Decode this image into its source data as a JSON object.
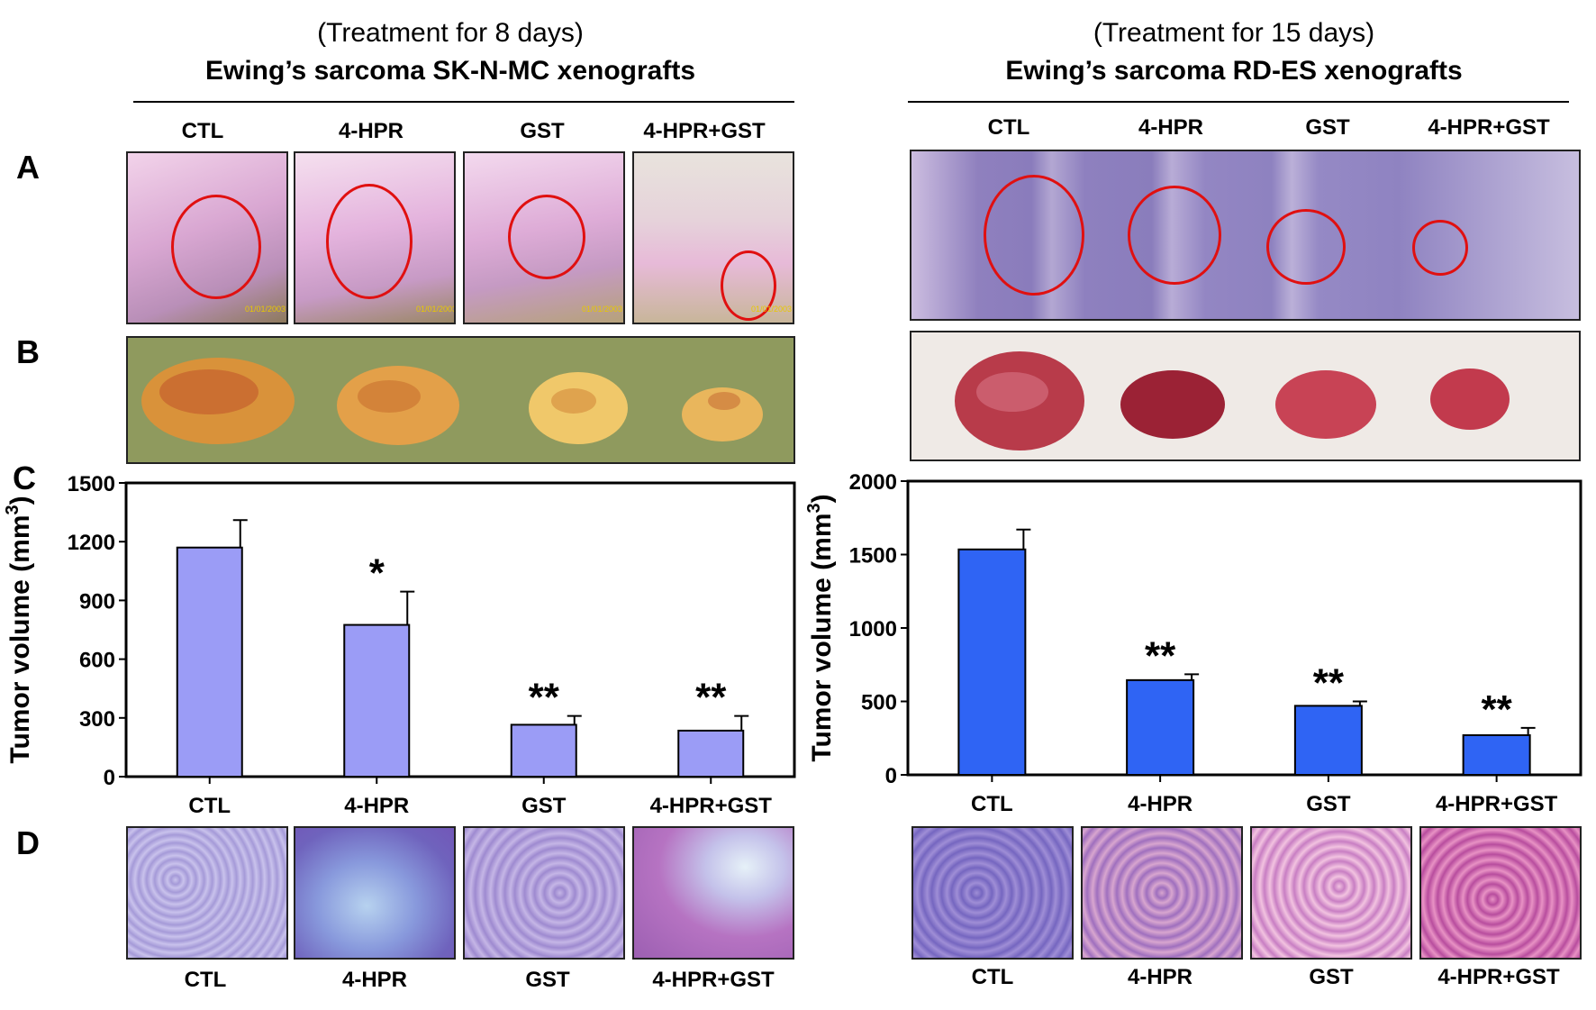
{
  "left": {
    "subtitle": "(Treatment for 8 days)",
    "title": "Ewing’s sarcoma SK-N-MC xenografts",
    "groups": [
      "CTL",
      "4-HPR",
      "GST",
      "4-HPR+GST"
    ],
    "photo_stamps": [
      "01/01/2003",
      "01/01/2003",
      "01/01/2003",
      "01/01/2003"
    ]
  },
  "right": {
    "subtitle": "(Treatment for 15 days)",
    "title": "Ewing’s sarcoma RD-ES xenografts",
    "groups": [
      "CTL",
      "4-HPR",
      "GST",
      "4-HPR+GST"
    ]
  },
  "panel_letters": [
    "A",
    "B",
    "C",
    "D"
  ],
  "colors": {
    "left_bar": "#9b9cf6",
    "right_bar": "#2f64f4",
    "circle": "#e01010"
  },
  "chart_data": [
    {
      "type": "bar",
      "categories": [
        "CTL",
        "4-HPR",
        "GST",
        "4-HPR+GST"
      ],
      "values": [
        1170,
        775,
        265,
        235
      ],
      "errors": [
        140,
        170,
        45,
        75
      ],
      "significance": [
        "",
        "*",
        "**",
        "**"
      ],
      "ylabel": "Tumor volume (mm3)",
      "ylim": [
        0,
        1500
      ],
      "yticks": [
        0,
        300,
        600,
        900,
        1200,
        1500
      ],
      "grid": false
    },
    {
      "type": "bar",
      "categories": [
        "CTL",
        "4-HPR",
        "GST",
        "4-HPR+GST"
      ],
      "values": [
        1535,
        645,
        470,
        270
      ],
      "errors": [
        135,
        40,
        30,
        50
      ],
      "significance": [
        "",
        "**",
        "**",
        "**"
      ],
      "ylabel": "Tumor volume (mm3)",
      "ylim": [
        0,
        2000
      ],
      "yticks": [
        0,
        500,
        1000,
        1500,
        2000
      ],
      "grid": false
    }
  ]
}
